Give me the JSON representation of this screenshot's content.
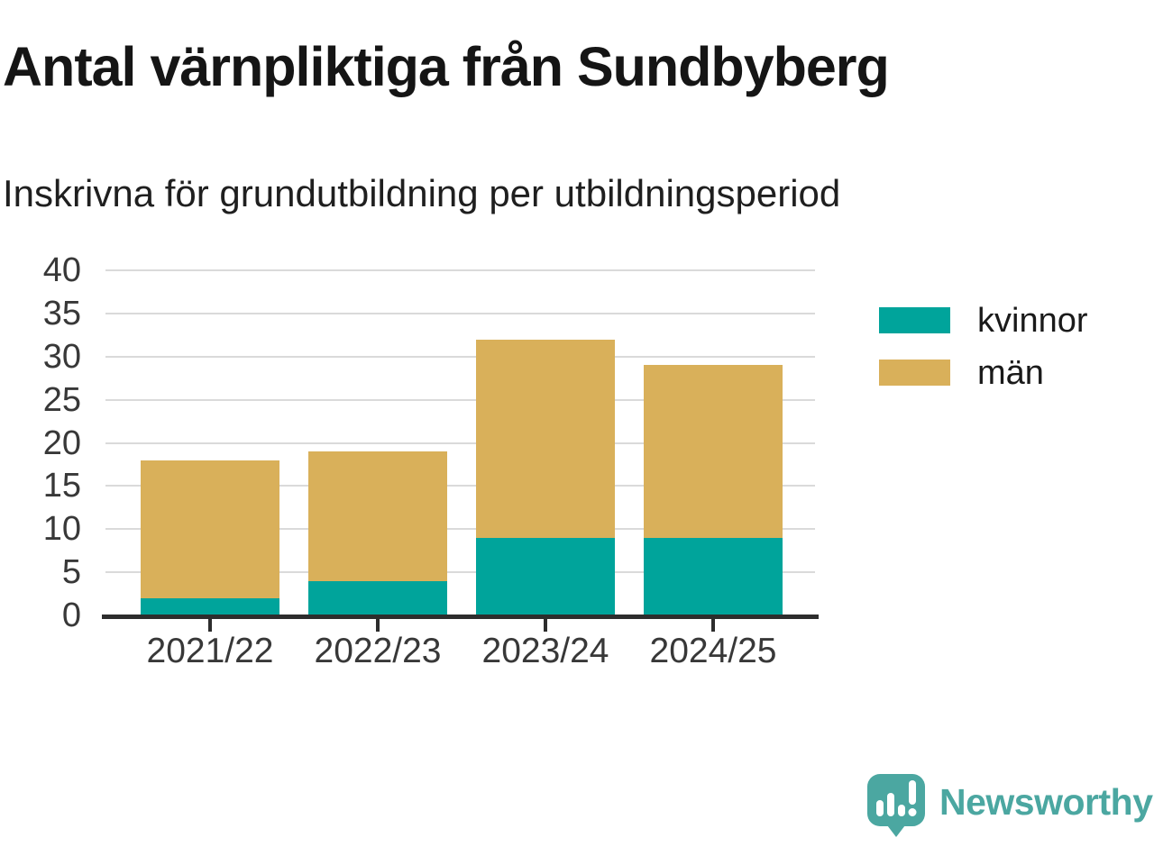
{
  "header": {
    "title": "Antal värnpliktiga från Sundbyberg",
    "subtitle": "Inskrivna för grundutbildning per utbildningsperiod"
  },
  "chart_data": {
    "type": "bar",
    "stacked": true,
    "title": "Antal värnpliktiga från Sundbyberg",
    "subtitle": "Inskrivna för grundutbildning per utbildningsperiod",
    "categories": [
      "2021/22",
      "2022/23",
      "2023/24",
      "2024/25"
    ],
    "series": [
      {
        "name": "kvinnor",
        "color": "#00A49B",
        "values": [
          2,
          4,
          9,
          9
        ]
      },
      {
        "name": "män",
        "color": "#D9B05A",
        "values": [
          16,
          15,
          23,
          20
        ]
      }
    ],
    "totals": [
      18,
      19,
      32,
      29
    ],
    "xlabel": "",
    "ylabel": "",
    "ylim": [
      0,
      40
    ],
    "yticks": [
      0,
      5,
      10,
      15,
      20,
      25,
      30,
      35,
      40
    ],
    "grid": true,
    "legend_position": "right"
  },
  "branding": {
    "logo_text": "Newsworthy",
    "logo_color": "#4BA7A1",
    "logo_icon": "newsworthy-speech-bubble-bar-chart-icon"
  },
  "colors": {
    "kvinnor": "#00A49B",
    "man": "#D9B05A",
    "gridline": "#DADADA",
    "axis_line": "#2D2D2D",
    "tick_label": "#383838",
    "text": "#1A1A1A"
  }
}
